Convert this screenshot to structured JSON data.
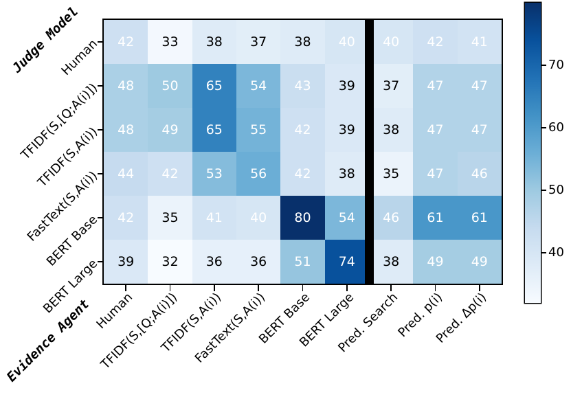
{
  "chart_data": {
    "type": "heatmap",
    "title": "",
    "ylabel": "Judge Model",
    "xlabel": "Evidence Agent",
    "y_categories": [
      "Human",
      "TFIDF(S,[Q;A(i)])",
      "TFIDF(S,A(i))",
      "FastText(S,A(i))",
      "BERT Base",
      "BERT Large"
    ],
    "x_categories": [
      "Human",
      "TFIDF(S,[Q;A(i)])",
      "TFIDF(S,A(i))",
      "FastText(S,A(i))",
      "BERT Base",
      "BERT Large",
      "Pred. Search",
      "Pred. p(i)",
      "Pred. Δp(i)"
    ],
    "values": [
      [
        42,
        33,
        38,
        37,
        38,
        40,
        40,
        42,
        41
      ],
      [
        48,
        50,
        65,
        54,
        43,
        39,
        37,
        47,
        47
      ],
      [
        48,
        49,
        65,
        55,
        42,
        39,
        38,
        47,
        47
      ],
      [
        44,
        42,
        53,
        56,
        42,
        38,
        35,
        47,
        46
      ],
      [
        42,
        35,
        41,
        40,
        80,
        54,
        46,
        61,
        61
      ],
      [
        39,
        32,
        36,
        36,
        51,
        74,
        38,
        49,
        49
      ]
    ],
    "colormap": "Blues",
    "colormap_stops": [
      "#f7fbff",
      "#deebf7",
      "#c6dbef",
      "#9ecae1",
      "#6baed6",
      "#4292c6",
      "#2171b5",
      "#08519c",
      "#08306b"
    ],
    "vmin": 32,
    "vmax": 80,
    "colorbar_ticks": [
      40,
      50,
      60,
      70
    ],
    "separator_after_column": 6,
    "text_color_threshold": 40,
    "cell_text_colors": {
      "high": "#ffffff",
      "low": "#000000"
    },
    "grid": false,
    "legend_position": "colorbar-right"
  }
}
